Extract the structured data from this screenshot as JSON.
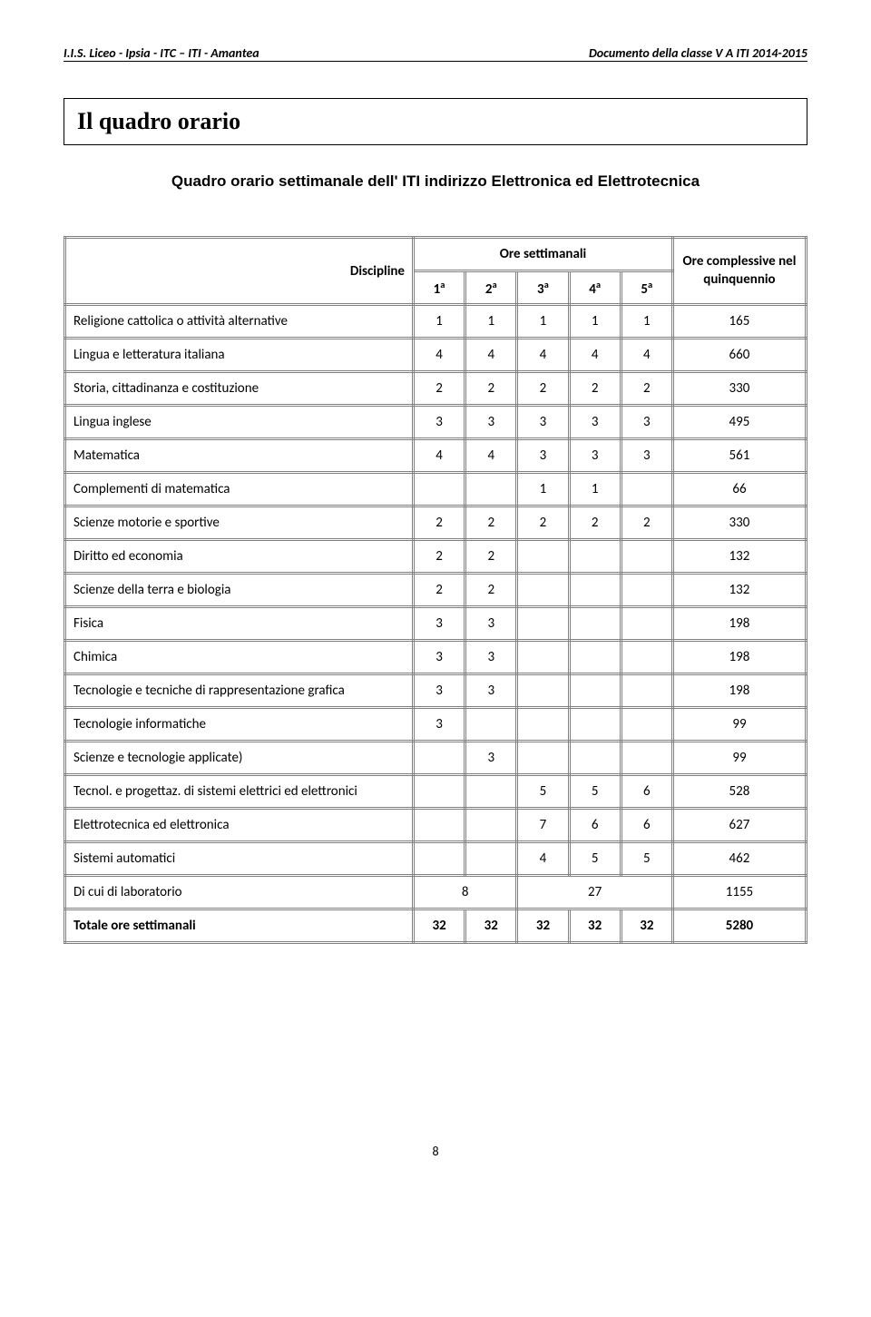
{
  "header": {
    "left": "I.I.S. Liceo - Ipsia - ITC – ITI - Amantea",
    "right": "Documento della classe V A ITI 2014-2015"
  },
  "title": "Il  quadro orario",
  "subtitle": "Quadro orario settimanale dell' ITI  indirizzo Elettronica ed Elettrotecnica",
  "schedule": {
    "disc_label": "Discipline",
    "ore_label": "Ore settimanali",
    "total_label_l1": "Ore complessive nel",
    "total_label_l2": "quinquennio",
    "years": [
      "1",
      "2",
      "3",
      "4",
      "5"
    ],
    "year_sup": "a",
    "rows": [
      {
        "name": "Religione cattolica o attività alternative",
        "v": [
          "1",
          "1",
          "1",
          "1",
          "1"
        ],
        "tot": "165"
      },
      {
        "name": "Lingua e letteratura italiana",
        "v": [
          "4",
          "4",
          "4",
          "4",
          "4"
        ],
        "tot": "660"
      },
      {
        "name": "Storia, cittadinanza e costituzione",
        "v": [
          "2",
          "2",
          "2",
          "2",
          "2"
        ],
        "tot": "330"
      },
      {
        "name": "Lingua inglese",
        "v": [
          "3",
          "3",
          "3",
          "3",
          "3"
        ],
        "tot": "495"
      },
      {
        "name": "Matematica",
        "v": [
          "4",
          "4",
          "3",
          "3",
          "3"
        ],
        "tot": "561"
      },
      {
        "name": "Complementi di matematica",
        "v": [
          "",
          "",
          "1",
          "1",
          ""
        ],
        "tot": "66"
      },
      {
        "name": "Scienze motorie e sportive",
        "v": [
          "2",
          "2",
          "2",
          "2",
          "2"
        ],
        "tot": "330"
      },
      {
        "name": "Diritto ed economia",
        "v": [
          "2",
          "2",
          "",
          "",
          ""
        ],
        "tot": "132"
      },
      {
        "name": "Scienze della terra e biologia",
        "v": [
          "2",
          "2",
          "",
          "",
          ""
        ],
        "tot": "132"
      },
      {
        "name": "Fisica",
        "v": [
          "3",
          "3",
          "",
          "",
          ""
        ],
        "tot": "198"
      },
      {
        "name": "Chimica",
        "v": [
          "3",
          "3",
          "",
          "",
          ""
        ],
        "tot": "198"
      },
      {
        "name": "Tecnologie e tecniche di rappresentazione grafica",
        "v": [
          "3",
          "3",
          "",
          "",
          ""
        ],
        "tot": "198"
      },
      {
        "name": "Tecnologie informatiche",
        "v": [
          "3",
          "",
          "",
          "",
          ""
        ],
        "tot": "99"
      },
      {
        "name": "Scienze e tecnologie applicate)",
        "v": [
          "",
          "3",
          "",
          "",
          ""
        ],
        "tot": "99"
      },
      {
        "name": "Tecnol. e progettaz. di sistemi elettrici ed elettronici",
        "v": [
          "",
          "",
          "5",
          "5",
          "6"
        ],
        "tot": "528"
      },
      {
        "name": "Elettrotecnica ed elettronica",
        "v": [
          "",
          "",
          "7",
          "6",
          "6"
        ],
        "tot": "627"
      },
      {
        "name": "Sistemi automatici",
        "v": [
          "",
          "",
          "4",
          "5",
          "5"
        ],
        "tot": "462"
      },
      {
        "name": "Di cui di laboratorio",
        "span1": "8",
        "span2": "27",
        "tot": "1155"
      },
      {
        "name": "Totale ore settimanali",
        "v": [
          "32",
          "32",
          "32",
          "32",
          "32"
        ],
        "tot": "5280",
        "bold": true
      }
    ]
  },
  "pageNumber": "8"
}
